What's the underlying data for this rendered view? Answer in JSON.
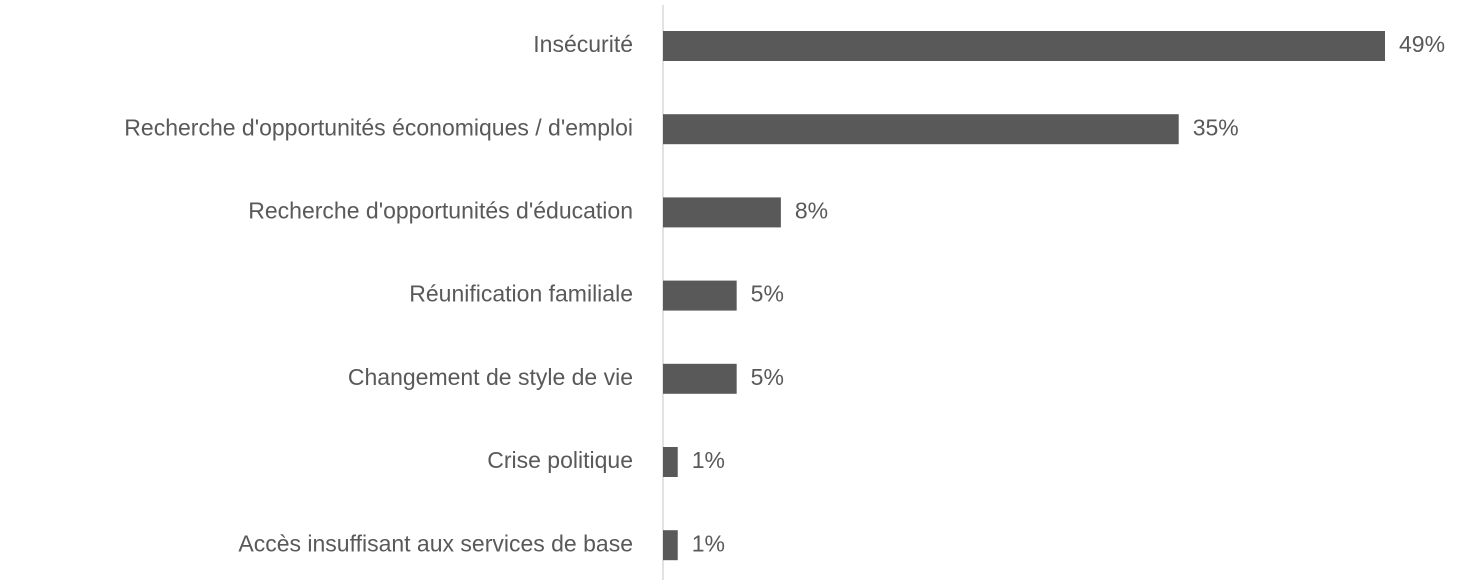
{
  "chart_data": {
    "type": "barh",
    "categories": [
      "Insécurité",
      "Recherche d'opportunités économiques / d'emploi",
      "Recherche d'opportunités d'éducation",
      "Réunification familiale",
      "Changement de style de vie",
      "Crise politique",
      "Accès insuffisant aux services de base"
    ],
    "values": [
      49,
      35,
      8,
      5,
      5,
      1,
      1
    ],
    "value_labels": [
      "49%",
      "35%",
      "8%",
      "5%",
      "5%",
      "1%",
      "1%"
    ],
    "color": "#595959"
  }
}
